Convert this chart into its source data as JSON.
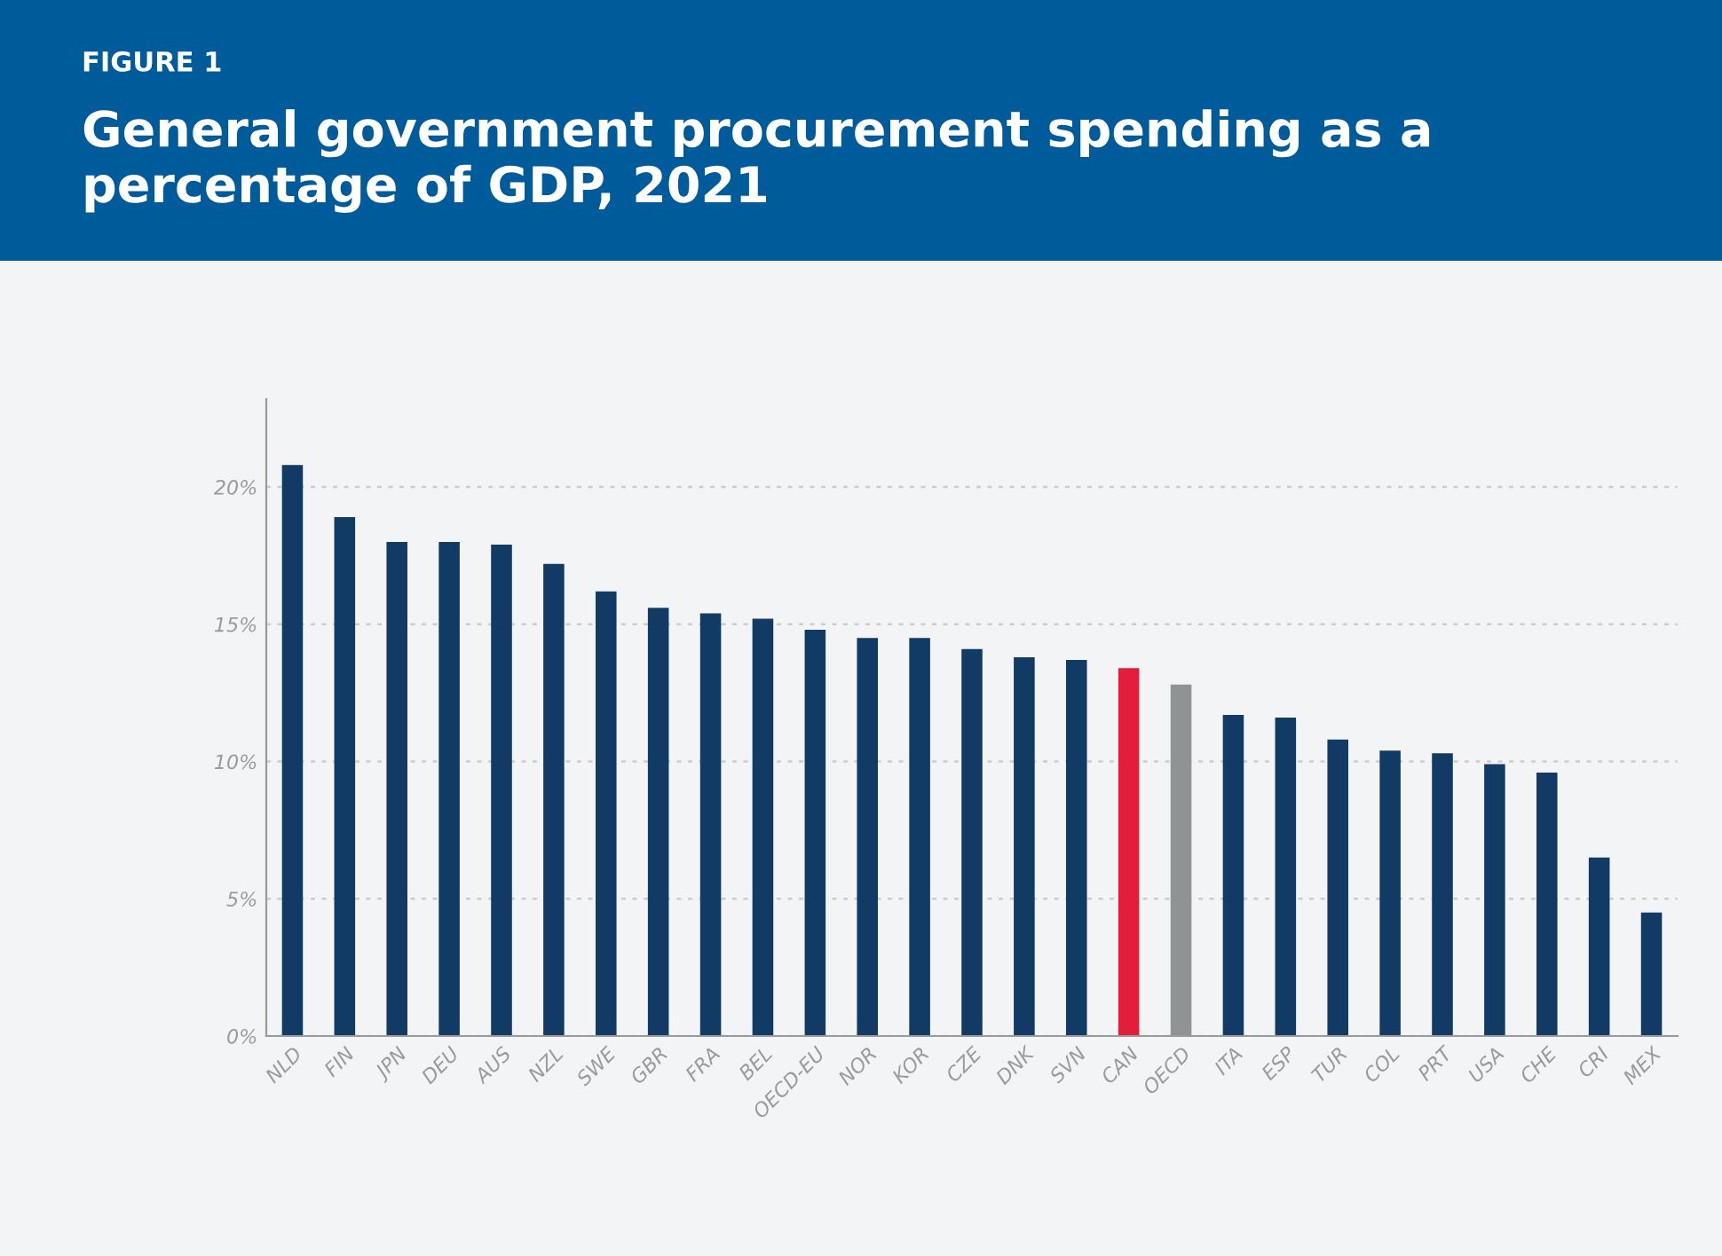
{
  "chart_data": {
    "type": "bar",
    "title": "General government procurement spending as a percentage of GDP, 2021",
    "annotations": [
      "FIGURE 1"
    ],
    "categories": [
      "NLD",
      "FIN",
      "JPN",
      "DEU",
      "AUS",
      "NZL",
      "SWE",
      "GBR",
      "FRA",
      "BEL",
      "OECD-EU",
      "NOR",
      "KOR",
      "CZE",
      "DNK",
      "SVN",
      "CAN",
      "OECD",
      "ITA",
      "ESP",
      "TUR",
      "COL",
      "PRT",
      "USA",
      "CHE",
      "CRI",
      "MEX"
    ],
    "values": [
      20.8,
      18.9,
      18.0,
      18.0,
      17.9,
      17.2,
      16.2,
      15.6,
      15.4,
      15.2,
      14.8,
      14.5,
      14.5,
      14.1,
      13.8,
      13.7,
      13.4,
      12.8,
      11.7,
      11.6,
      10.8,
      10.4,
      10.3,
      9.9,
      9.6,
      6.5,
      4.5
    ],
    "colors": [
      "#113a64",
      "#113a64",
      "#113a64",
      "#113a64",
      "#113a64",
      "#113a64",
      "#113a64",
      "#113a64",
      "#113a64",
      "#113a64",
      "#113a64",
      "#113a64",
      "#113a64",
      "#113a64",
      "#113a64",
      "#113a64",
      "#e31e3a",
      "#909394",
      "#113a64",
      "#113a64",
      "#113a64",
      "#113a64",
      "#113a64",
      "#113a64",
      "#113a64",
      "#113a64",
      "#113a64"
    ],
    "ylim": [
      0,
      23.2
    ],
    "yticks": [
      {
        "value": 0,
        "label": "0%"
      },
      {
        "value": 5,
        "label": "5%"
      },
      {
        "value": 10,
        "label": "10%"
      },
      {
        "value": 15,
        "label": "15%"
      },
      {
        "value": 20,
        "label": "20%"
      }
    ],
    "grid": "y",
    "legend": false
  }
}
